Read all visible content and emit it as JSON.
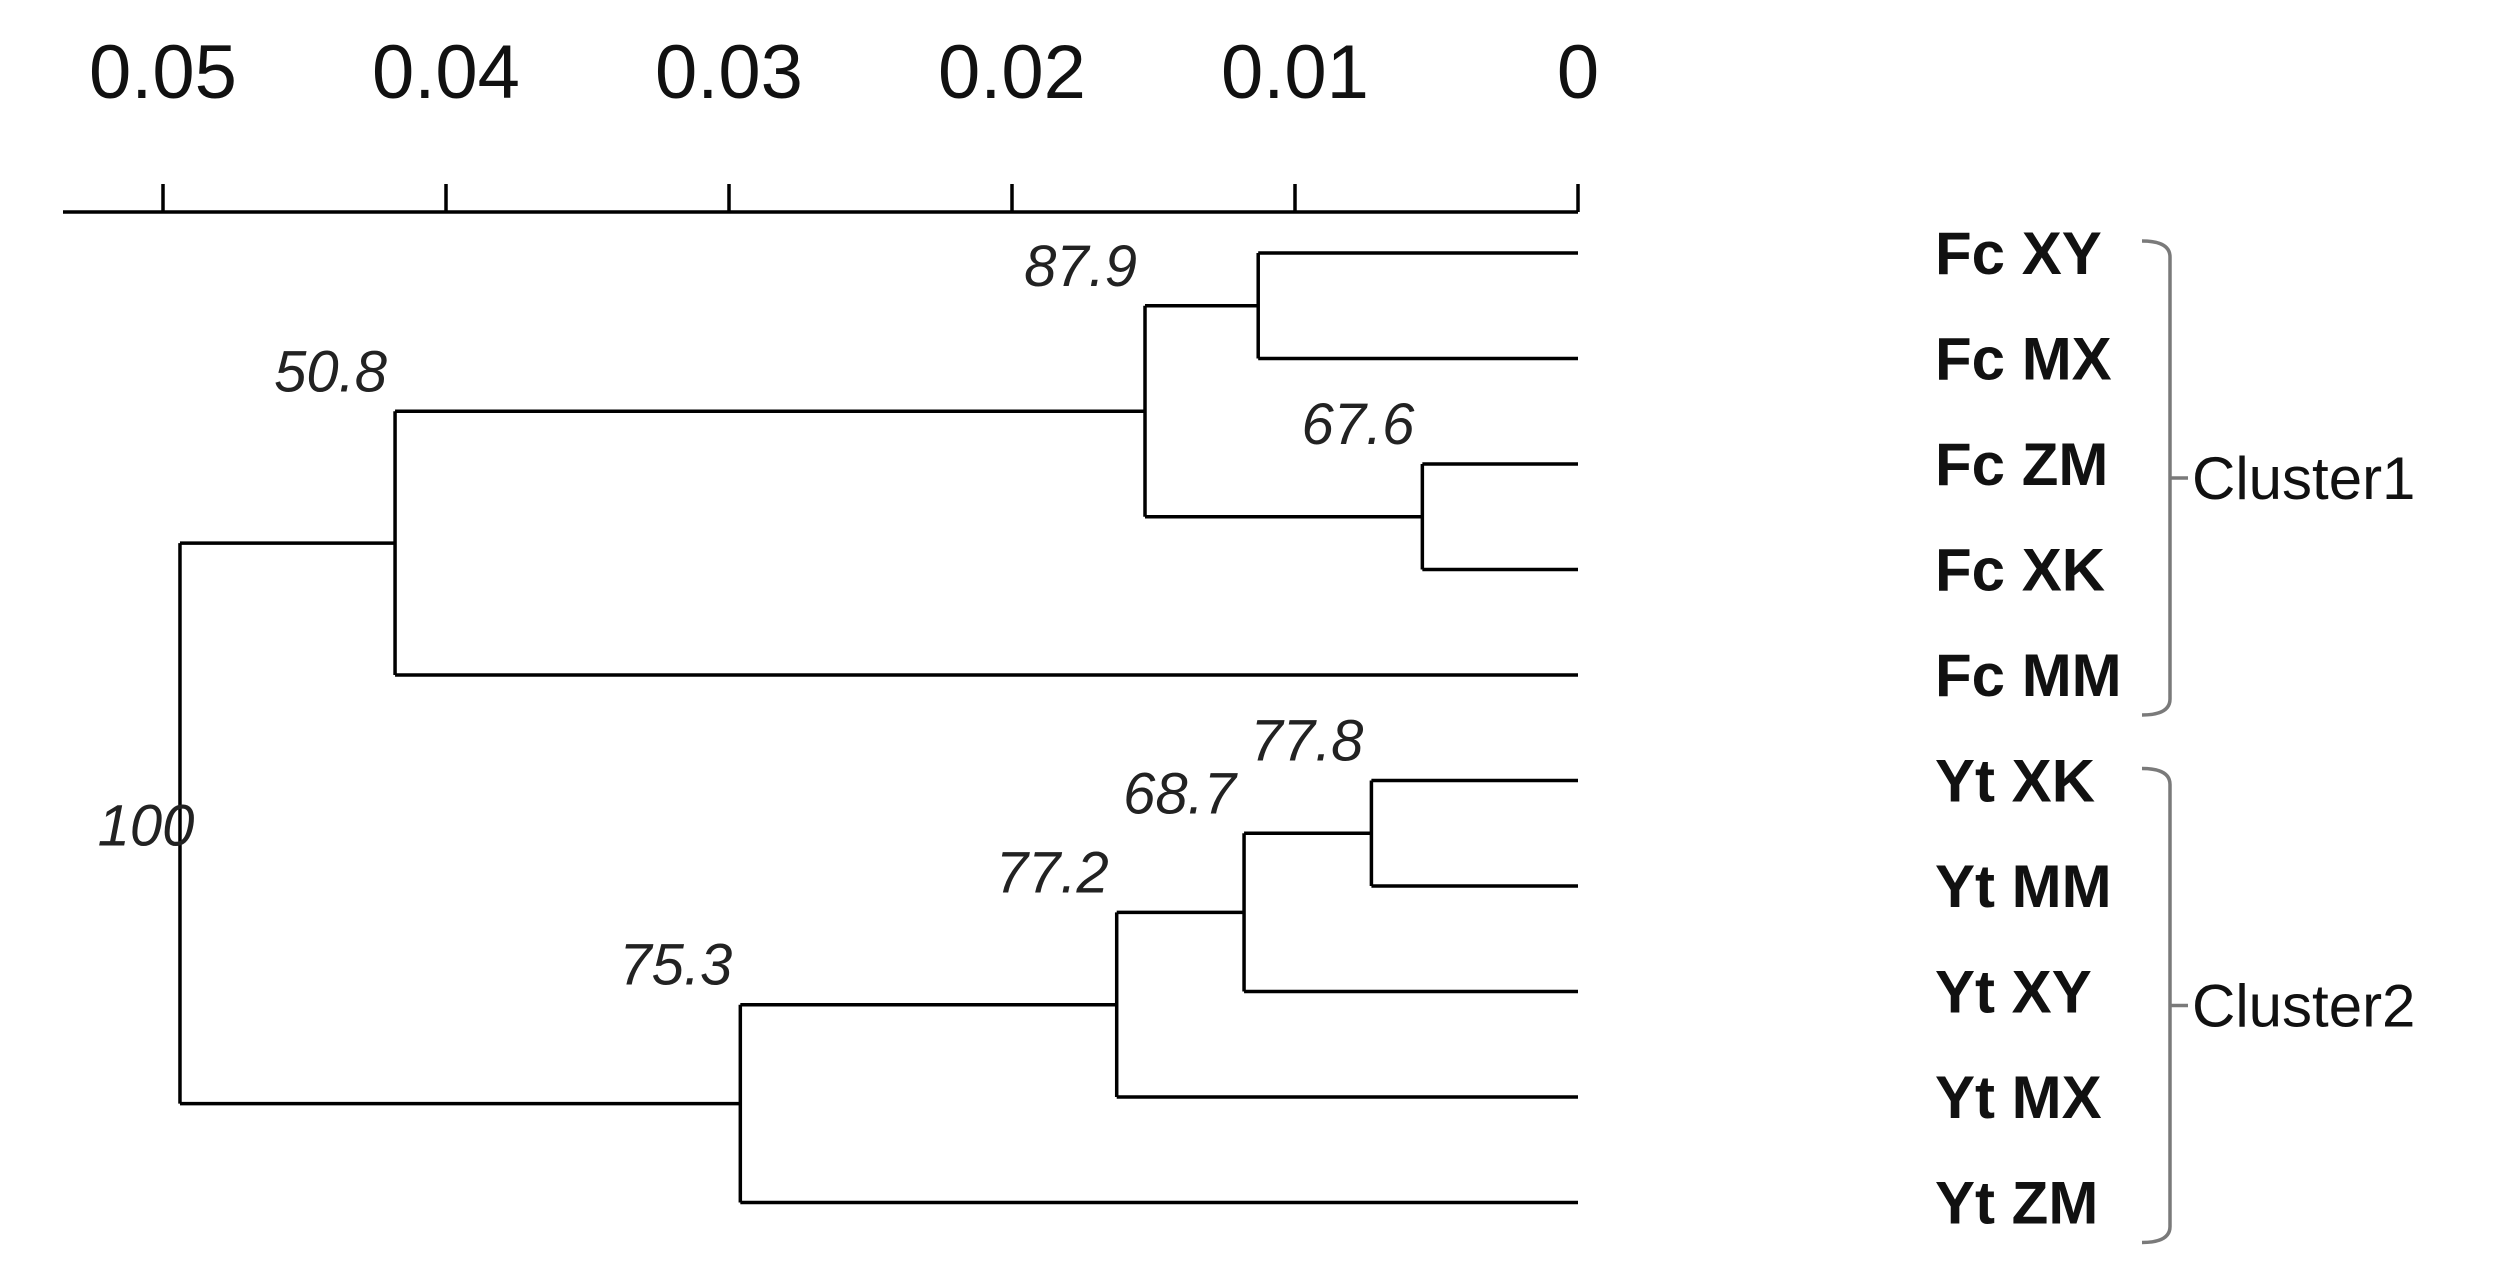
{
  "axis": {
    "ticks": [
      {
        "value": 0.05,
        "label": "0.05"
      },
      {
        "value": 0.04,
        "label": "0.04"
      },
      {
        "value": 0.03,
        "label": "0.03"
      },
      {
        "value": 0.02,
        "label": "0.02"
      },
      {
        "value": 0.01,
        "label": "0.01"
      },
      {
        "value": 0,
        "label": "0"
      }
    ],
    "range": [
      0.05,
      0
    ],
    "direction": "right-to-left"
  },
  "leaves": [
    {
      "name": "Fc XY",
      "cluster": "Cluster1"
    },
    {
      "name": "Fc MX",
      "cluster": "Cluster1"
    },
    {
      "name": "Fc ZM",
      "cluster": "Cluster1"
    },
    {
      "name": "Fc XK",
      "cluster": "Cluster1"
    },
    {
      "name": "Fc MM",
      "cluster": "Cluster1"
    },
    {
      "name": "Yt XK",
      "cluster": "Cluster2"
    },
    {
      "name": "Yt MM",
      "cluster": "Cluster2"
    },
    {
      "name": "Yt XY",
      "cluster": "Cluster2"
    },
    {
      "name": "Yt MX",
      "cluster": "Cluster2"
    },
    {
      "name": "Yt ZM",
      "cluster": "Cluster2"
    }
  ],
  "nodes": [
    {
      "id": "n_xy_mx",
      "height": 0.0113,
      "children": [
        "Fc XY",
        "Fc MX"
      ],
      "support": null
    },
    {
      "id": "n_zm_xk",
      "height": 0.0055,
      "children": [
        "Fc ZM",
        "Fc XK"
      ],
      "support": "67.6"
    },
    {
      "id": "n_fc4",
      "height": 0.0153,
      "children": [
        "n_xy_mx",
        "n_zm_xk"
      ],
      "support": "87.9"
    },
    {
      "id": "n_fc5",
      "height": 0.0418,
      "children": [
        "n_fc4",
        "Fc MM"
      ],
      "support": "50.8"
    },
    {
      "id": "n_ytxk_mm",
      "height": 0.0073,
      "children": [
        "Yt XK",
        "Yt MM"
      ],
      "support": "77.8"
    },
    {
      "id": "n_yt3",
      "height": 0.0118,
      "children": [
        "n_ytxk_mm",
        "Yt XY"
      ],
      "support": "68.7"
    },
    {
      "id": "n_yt4",
      "height": 0.0163,
      "children": [
        "n_yt3",
        "Yt MX"
      ],
      "support": "77.2"
    },
    {
      "id": "n_yt5",
      "height": 0.0296,
      "children": [
        "n_yt4",
        "Yt ZM"
      ],
      "support": "75.3"
    },
    {
      "id": "n_root",
      "height": 0.0494,
      "children": [
        "n_fc5",
        "n_yt5"
      ],
      "support": "100"
    }
  ],
  "clusters": [
    {
      "name": "Cluster1",
      "label": "Cluster1",
      "members": [
        "Fc XY",
        "Fc MX",
        "Fc ZM",
        "Fc XK",
        "Fc MM"
      ]
    },
    {
      "name": "Cluster2",
      "label": "Cluster2",
      "members": [
        "Yt XK",
        "Yt MM",
        "Yt XY",
        "Yt MX",
        "Yt ZM"
      ]
    }
  ],
  "colors": {
    "branch": "#000000",
    "bracket": "#7a7a7a",
    "text": "#111111"
  }
}
